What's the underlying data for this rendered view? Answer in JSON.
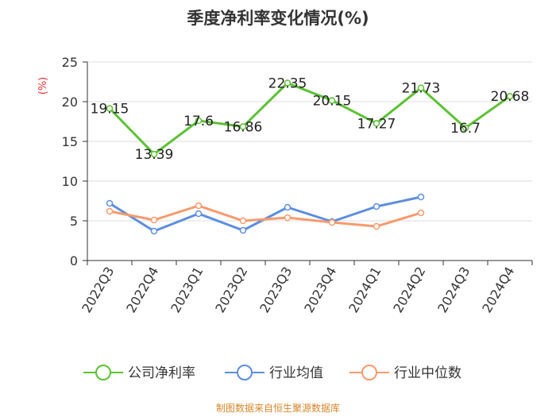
{
  "chart_data": {
    "type": "line",
    "title": "季度净利率变化情况(%)",
    "ylabel": "(%)",
    "xlabel": "",
    "ylim": [
      0,
      25
    ],
    "yticks": [
      0,
      5,
      10,
      15,
      20,
      25
    ],
    "grid": true,
    "legend_position": "bottom",
    "categories": [
      "2022Q3",
      "2022Q4",
      "2023Q1",
      "2023Q2",
      "2023Q3",
      "2023Q4",
      "2024Q1",
      "2024Q2",
      "2024Q3",
      "2024Q4"
    ],
    "series": [
      {
        "name": "公司净利率",
        "color": "#5cc234",
        "values": [
          19.15,
          13.39,
          17.6,
          16.86,
          22.35,
          20.15,
          17.27,
          21.73,
          16.7,
          20.68
        ],
        "labels": [
          "19.15",
          "13.39",
          "17.6",
          "16.86",
          "22.35",
          "20.15",
          "17.27",
          "21.73",
          "16.7",
          "20.68"
        ],
        "show_labels": true
      },
      {
        "name": "行业均值",
        "color": "#5b8ee0",
        "values": [
          7.2,
          3.7,
          5.9,
          3.8,
          6.7,
          4.9,
          6.8,
          8.0,
          null,
          null
        ],
        "show_labels": false
      },
      {
        "name": "行业中位数",
        "color": "#f79a6c",
        "values": [
          6.2,
          5.1,
          6.9,
          5.0,
          5.4,
          4.8,
          4.3,
          6.0,
          null,
          null
        ],
        "show_labels": false
      }
    ]
  },
  "source": "制图数据来自恒生聚源数据库"
}
